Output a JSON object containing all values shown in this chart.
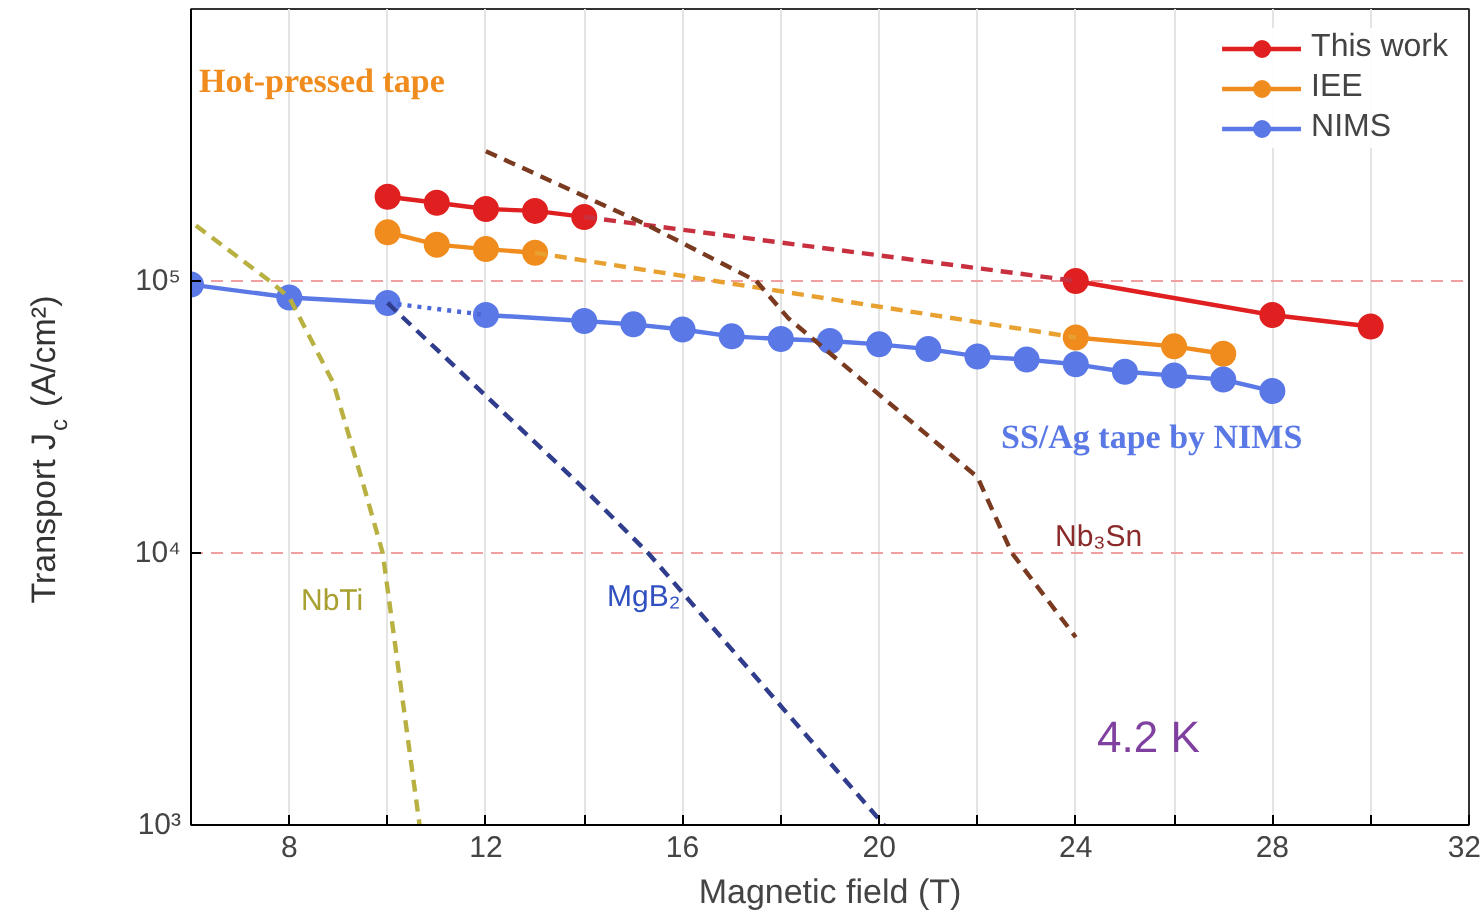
{
  "chart_data": {
    "type": "line",
    "xlabel": "Magnetic field (T)",
    "ylabel": "Transport J$_{c}$ (A/cm²)",
    "log": "y",
    "xlim": [
      6,
      32
    ],
    "ylim": [
      1000,
      1000000
    ],
    "xticks": [
      {
        "value": 6,
        "label": null
      },
      8,
      {
        "value": 10,
        "label": null
      },
      12,
      {
        "value": 14,
        "label": null
      },
      16,
      {
        "value": 18,
        "label": null
      },
      20,
      {
        "value": 22,
        "label": null
      },
      24,
      {
        "value": 26,
        "label": null
      },
      28,
      {
        "value": 30,
        "label": null
      },
      32
    ],
    "yticks": [
      {
        "value": 1000,
        "label": "10³"
      },
      {
        "value": 10000,
        "label": "10⁴"
      },
      {
        "value": 100000,
        "label": "10⁵"
      }
    ],
    "grid": true,
    "legend": "top right",
    "marker": "circle",
    "series": [
      {
        "name": "This work",
        "color": "#e02020",
        "x": [
          10,
          11,
          12,
          13,
          14,
          19,
          24,
          28,
          30
        ],
        "values": [
          204000,
          194000,
          184000,
          181000,
          172000,
          null,
          100000,
          75000,
          68000
        ]
      },
      {
        "name": "IEE",
        "color": "#f08c1e",
        "x": [
          10,
          11,
          12,
          13,
          18,
          24,
          26,
          27
        ],
        "values": [
          151000,
          136000,
          131000,
          127000,
          null,
          62000,
          57500,
          54000
        ]
      },
      {
        "name": "NIMS",
        "color": "#5a78e6",
        "x": [
          6,
          8,
          10,
          11,
          12,
          14,
          15,
          16,
          17,
          18,
          19,
          20,
          21,
          22,
          23,
          24,
          25,
          26,
          27,
          28
        ],
        "values": [
          97000,
          87000,
          83000,
          null,
          75000,
          71300,
          69300,
          66300,
          62600,
          61200,
          60200,
          58500,
          56200,
          52800,
          51400,
          49400,
          46400,
          44900,
          43400,
          39400
        ]
      },
      {
        "color": "#c83040",
        "line_style": "dashed",
        "marker": "none",
        "x": [
          14,
          24
        ],
        "values": [
          172000,
          100000
        ]
      },
      {
        "color": "#e8a030",
        "line_style": "dashed",
        "marker": "none",
        "x": [
          13,
          24
        ],
        "values": [
          127000,
          62000
        ]
      },
      {
        "color": "#4a68d8",
        "line_style": "dotted",
        "marker": "none",
        "x": [
          10,
          12
        ],
        "values": [
          83000,
          75000
        ]
      },
      {
        "color": "#b8b040",
        "line_style": "dashed",
        "marker": "none",
        "x": [
          6.1,
          7.6,
          8,
          8.9,
          9.5,
          9.9,
          10.65
        ],
        "values": [
          160000,
          100000,
          87000,
          42000,
          18000,
          10000,
          1000
        ]
      },
      {
        "color": "#303c8c",
        "line_style": "dashed",
        "marker": "none",
        "x": [
          10,
          13.9,
          15.3,
          20.1
        ],
        "values": [
          83000,
          17900,
          10000,
          1000
        ]
      },
      {
        "color": "#7a3a20",
        "line_style": "dashed",
        "marker": "none",
        "x": [
          12,
          15.3,
          17.5,
          18.15,
          22,
          22.7,
          24
        ],
        "values": [
          300000,
          160000,
          100000,
          73000,
          19000,
          10000,
          4900
        ]
      }
    ],
    "annotations": [
      "Hot-pressed tape",
      "SS/Ag tape by NIMS",
      "NbTi",
      "MgB₂",
      "Nb₃Sn",
      "4.2 K"
    ]
  }
}
